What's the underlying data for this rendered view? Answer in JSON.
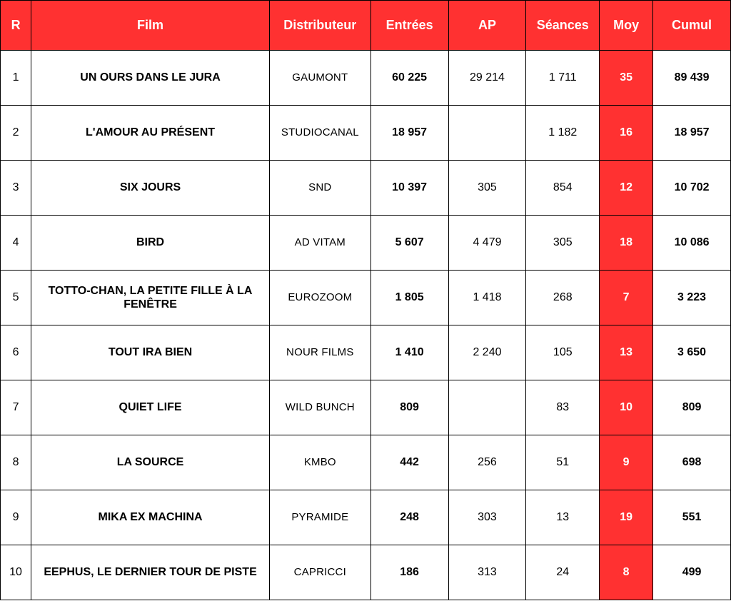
{
  "table": {
    "type": "table",
    "header_background": "#ff3131",
    "header_text_color": "#ffffff",
    "highlight_column_background": "#ff3131",
    "highlight_column_text_color": "#ffffff",
    "border_color": "#000000",
    "cell_background": "#ffffff",
    "columns": [
      {
        "key": "rank",
        "label": "R",
        "width_pct": 4.2,
        "align": "center"
      },
      {
        "key": "film",
        "label": "Film",
        "width_pct": 32.5,
        "align": "center",
        "bold": true
      },
      {
        "key": "dist",
        "label": "Distributeur",
        "width_pct": 13.8,
        "align": "center"
      },
      {
        "key": "entrees",
        "label": "Entrées",
        "width_pct": 10.6,
        "align": "center",
        "bold": true
      },
      {
        "key": "ap",
        "label": "AP",
        "width_pct": 10.6,
        "align": "center"
      },
      {
        "key": "seances",
        "label": "Séances",
        "width_pct": 10.0,
        "align": "center"
      },
      {
        "key": "moy",
        "label": "Moy",
        "width_pct": 7.3,
        "align": "center",
        "highlight": true,
        "bold": true
      },
      {
        "key": "cumul",
        "label": "Cumul",
        "width_pct": 10.6,
        "align": "center",
        "bold": true
      }
    ],
    "rows": [
      {
        "rank": "1",
        "film": "UN OURS DANS LE JURA",
        "dist": "GAUMONT",
        "entrees": "60 225",
        "ap": "29 214",
        "seances": "1 711",
        "moy": "35",
        "cumul": "89 439"
      },
      {
        "rank": "2",
        "film": "L'AMOUR AU PRÉSENT",
        "dist": "STUDIOCANAL",
        "entrees": "18 957",
        "ap": "",
        "seances": "1 182",
        "moy": "16",
        "cumul": "18 957"
      },
      {
        "rank": "3",
        "film": "SIX JOURS",
        "dist": "SND",
        "entrees": "10 397",
        "ap": "305",
        "seances": "854",
        "moy": "12",
        "cumul": "10 702"
      },
      {
        "rank": "4",
        "film": "BIRD",
        "dist": "AD VITAM",
        "entrees": "5 607",
        "ap": "4 479",
        "seances": "305",
        "moy": "18",
        "cumul": "10 086"
      },
      {
        "rank": "5",
        "film": "TOTTO-CHAN, LA PETITE FILLE À LA FENÊTRE",
        "dist": "EUROZOOM",
        "entrees": "1 805",
        "ap": "1 418",
        "seances": "268",
        "moy": "7",
        "cumul": "3 223"
      },
      {
        "rank": "6",
        "film": "TOUT IRA BIEN",
        "dist": "NOUR FILMS",
        "entrees": "1 410",
        "ap": "2 240",
        "seances": "105",
        "moy": "13",
        "cumul": "3 650"
      },
      {
        "rank": "7",
        "film": "QUIET LIFE",
        "dist": "WILD BUNCH",
        "entrees": "809",
        "ap": "",
        "seances": "83",
        "moy": "10",
        "cumul": "809"
      },
      {
        "rank": "8",
        "film": "LA SOURCE",
        "dist": "KMBO",
        "entrees": "442",
        "ap": "256",
        "seances": "51",
        "moy": "9",
        "cumul": "698"
      },
      {
        "rank": "9",
        "film": "MIKA EX MACHINA",
        "dist": "PYRAMIDE",
        "entrees": "248",
        "ap": "303",
        "seances": "13",
        "moy": "19",
        "cumul": "551"
      },
      {
        "rank": "10",
        "film": "EEPHUS, LE DERNIER TOUR DE PISTE",
        "dist": "CAPRICCI",
        "entrees": "186",
        "ap": "313",
        "seances": "24",
        "moy": "8",
        "cumul": "499"
      }
    ]
  }
}
